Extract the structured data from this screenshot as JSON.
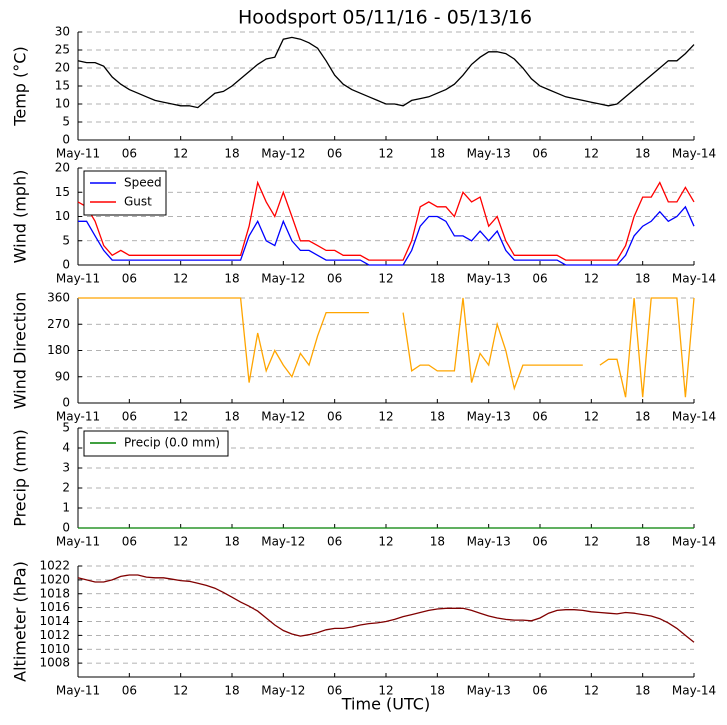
{
  "chart_data": [
    {
      "type": "line",
      "title": "Hoodsport 05/11/16 - 05/13/16",
      "ylabel": "Temp (°C)",
      "x": [
        0,
        1,
        2,
        3,
        4,
        5,
        6,
        7,
        8,
        9,
        10,
        11,
        12,
        13,
        14,
        15,
        16,
        17,
        18,
        19,
        20,
        21,
        22,
        23,
        24,
        25,
        26,
        27,
        28,
        29,
        30,
        31,
        32,
        33,
        34,
        35,
        36,
        37,
        38,
        39,
        40,
        41,
        42,
        43,
        44,
        45,
        46,
        47,
        48,
        49,
        50,
        51,
        52,
        53,
        54,
        55,
        56,
        57,
        58,
        59,
        60,
        61,
        62,
        63,
        64,
        65,
        66,
        67,
        68,
        69,
        70,
        71,
        72
      ],
      "series": [
        {
          "name": "Temp",
          "color": "#000000",
          "values": [
            22,
            21.5,
            21.5,
            20.5,
            17.5,
            15.5,
            14,
            13,
            12,
            11,
            10.5,
            10,
            9.5,
            9.5,
            9,
            11,
            13,
            13.5,
            15,
            17,
            19,
            21,
            22.5,
            23,
            28,
            28.5,
            28,
            27,
            25.5,
            22,
            18,
            15.5,
            14,
            13,
            12,
            11,
            10,
            10,
            9.5,
            11,
            11.5,
            12,
            13,
            14,
            15.5,
            18,
            21,
            23,
            24.5,
            24.5,
            24,
            22.5,
            20,
            17,
            15,
            14,
            13,
            12,
            11.5,
            11,
            10.5,
            10,
            9.5,
            10,
            12,
            14,
            16,
            18,
            20,
            22,
            22,
            24,
            26.5
          ]
        }
      ],
      "xlim": [
        0,
        72
      ],
      "ylim": [
        0,
        30
      ],
      "yticks": [
        0,
        5,
        10,
        15,
        20,
        25,
        30
      ],
      "grid": true,
      "xticks": [
        {
          "value": 0,
          "label": "May-11"
        },
        {
          "value": 6,
          "label": "06"
        },
        {
          "value": 12,
          "label": "12"
        },
        {
          "value": 18,
          "label": "18"
        },
        {
          "value": 24,
          "label": "May-12"
        },
        {
          "value": 30,
          "label": "06"
        },
        {
          "value": 36,
          "label": "12"
        },
        {
          "value": 42,
          "label": "18"
        },
        {
          "value": 48,
          "label": "May-13"
        },
        {
          "value": 54,
          "label": "06"
        },
        {
          "value": 60,
          "label": "12"
        },
        {
          "value": 66,
          "label": "18"
        },
        {
          "value": 72,
          "label": "May-14"
        }
      ]
    },
    {
      "type": "line",
      "ylabel": "Wind (mph)",
      "legend": "upper left",
      "x": [
        0,
        1,
        2,
        3,
        4,
        5,
        6,
        7,
        8,
        9,
        10,
        11,
        12,
        13,
        14,
        15,
        16,
        17,
        18,
        19,
        20,
        21,
        22,
        23,
        24,
        25,
        26,
        27,
        28,
        29,
        30,
        31,
        32,
        33,
        34,
        35,
        36,
        37,
        38,
        39,
        40,
        41,
        42,
        43,
        44,
        45,
        46,
        47,
        48,
        49,
        50,
        51,
        52,
        53,
        54,
        55,
        56,
        57,
        58,
        59,
        60,
        61,
        62,
        63,
        64,
        65,
        66,
        67,
        68,
        69,
        70,
        71,
        72
      ],
      "series": [
        {
          "name": "Speed",
          "color": "#0000ff",
          "values": [
            9,
            9,
            6,
            3,
            1,
            1,
            1,
            1,
            1,
            1,
            1,
            1,
            1,
            1,
            1,
            1,
            1,
            1,
            1,
            1,
            6,
            9,
            5,
            4,
            9,
            5,
            3,
            3,
            2,
            1,
            1,
            1,
            1,
            1,
            0,
            0,
            0,
            0,
            0,
            3,
            8,
            10,
            10,
            9,
            6,
            6,
            5,
            7,
            5,
            7,
            3,
            1,
            1,
            1,
            1,
            1,
            1,
            0,
            0,
            0,
            0,
            0,
            0,
            0,
            2,
            6,
            8,
            9,
            11,
            9,
            10,
            12,
            8
          ]
        },
        {
          "name": "Gust",
          "color": "#ff0000",
          "values": [
            13,
            12,
            9,
            4,
            2,
            3,
            2,
            2,
            2,
            2,
            2,
            2,
            2,
            2,
            2,
            2,
            2,
            2,
            2,
            2,
            8,
            17,
            13,
            10,
            15,
            10,
            5,
            5,
            4,
            3,
            3,
            2,
            2,
            2,
            1,
            1,
            1,
            1,
            1,
            5,
            12,
            13,
            12,
            12,
            10,
            15,
            13,
            14,
            8,
            10,
            5,
            2,
            2,
            2,
            2,
            2,
            2,
            1,
            1,
            1,
            1,
            1,
            1,
            1,
            4,
            10,
            14,
            14,
            17,
            13,
            13,
            16,
            13
          ]
        }
      ],
      "xlim": [
        0,
        72
      ],
      "ylim": [
        0,
        20
      ],
      "yticks": [
        0,
        5,
        10,
        15,
        20
      ],
      "grid": true,
      "xticks": [
        {
          "value": 0,
          "label": "May-11"
        },
        {
          "value": 6,
          "label": "06"
        },
        {
          "value": 12,
          "label": "12"
        },
        {
          "value": 18,
          "label": "18"
        },
        {
          "value": 24,
          "label": "May-12"
        },
        {
          "value": 30,
          "label": "06"
        },
        {
          "value": 36,
          "label": "12"
        },
        {
          "value": 42,
          "label": "18"
        },
        {
          "value": 48,
          "label": "May-13"
        },
        {
          "value": 54,
          "label": "06"
        },
        {
          "value": 60,
          "label": "12"
        },
        {
          "value": 66,
          "label": "18"
        },
        {
          "value": 72,
          "label": "May-14"
        }
      ]
    },
    {
      "type": "line",
      "ylabel": "Wind Direction",
      "x": [
        0,
        1,
        2,
        3,
        4,
        5,
        6,
        7,
        8,
        9,
        10,
        11,
        12,
        13,
        14,
        15,
        16,
        17,
        18,
        19,
        20,
        21,
        22,
        23,
        24,
        25,
        26,
        27,
        28,
        29,
        30,
        31,
        32,
        33,
        34,
        35,
        36,
        37,
        38,
        39,
        40,
        41,
        42,
        43,
        44,
        45,
        46,
        47,
        48,
        49,
        50,
        51,
        52,
        53,
        54,
        55,
        56,
        57,
        58,
        59,
        60,
        61,
        62,
        63,
        64,
        65,
        66,
        67,
        68,
        69,
        70,
        71,
        72
      ],
      "series": [
        {
          "name": "Direction",
          "color": "#ffa500",
          "values": [
            360,
            360,
            360,
            360,
            360,
            360,
            360,
            360,
            360,
            360,
            360,
            360,
            360,
            360,
            360,
            360,
            360,
            360,
            360,
            360,
            70,
            240,
            110,
            180,
            130,
            90,
            170,
            130,
            230,
            310,
            310,
            310,
            310,
            310,
            310,
            null,
            null,
            null,
            310,
            110,
            130,
            130,
            110,
            110,
            110,
            360,
            70,
            170,
            130,
            270,
            180,
            50,
            130,
            130,
            130,
            130,
            130,
            130,
            130,
            130,
            null,
            130,
            150,
            150,
            20,
            360,
            20,
            360,
            360,
            360,
            360,
            20,
            360
          ]
        }
      ],
      "xlim": [
        0,
        72
      ],
      "ylim": [
        0,
        360
      ],
      "yticks": [
        0,
        90,
        180,
        270,
        360
      ],
      "grid": true,
      "xticks": [
        {
          "value": 0,
          "label": "May-11"
        },
        {
          "value": 6,
          "label": "06"
        },
        {
          "value": 12,
          "label": "12"
        },
        {
          "value": 18,
          "label": "18"
        },
        {
          "value": 24,
          "label": "May-12"
        },
        {
          "value": 30,
          "label": "06"
        },
        {
          "value": 36,
          "label": "12"
        },
        {
          "value": 42,
          "label": "18"
        },
        {
          "value": 48,
          "label": "May-13"
        },
        {
          "value": 54,
          "label": "06"
        },
        {
          "value": 60,
          "label": "12"
        },
        {
          "value": 66,
          "label": "18"
        },
        {
          "value": 72,
          "label": "May-14"
        }
      ]
    },
    {
      "type": "line",
      "ylabel": "Precip (mm)",
      "legend": "upper left",
      "x": [
        0,
        1,
        2,
        3,
        4,
        5,
        6,
        7,
        8,
        9,
        10,
        11,
        12,
        13,
        14,
        15,
        16,
        17,
        18,
        19,
        20,
        21,
        22,
        23,
        24,
        25,
        26,
        27,
        28,
        29,
        30,
        31,
        32,
        33,
        34,
        35,
        36,
        37,
        38,
        39,
        40,
        41,
        42,
        43,
        44,
        45,
        46,
        47,
        48,
        49,
        50,
        51,
        52,
        53,
        54,
        55,
        56,
        57,
        58,
        59,
        60,
        61,
        62,
        63,
        64,
        65,
        66,
        67,
        68,
        69,
        70,
        71,
        72
      ],
      "series": [
        {
          "name": "Precip (0.0 mm)",
          "color": "#008000",
          "values": [
            0,
            0,
            0,
            0,
            0,
            0,
            0,
            0,
            0,
            0,
            0,
            0,
            0,
            0,
            0,
            0,
            0,
            0,
            0,
            0,
            0,
            0,
            0,
            0,
            0,
            0,
            0,
            0,
            0,
            0,
            0,
            0,
            0,
            0,
            0,
            0,
            0,
            0,
            0,
            0,
            0,
            0,
            0,
            0,
            0,
            0,
            0,
            0,
            0,
            0,
            0,
            0,
            0,
            0,
            0,
            0,
            0,
            0,
            0,
            0,
            0,
            0,
            0,
            0,
            0,
            0,
            0,
            0,
            0,
            0,
            0,
            0,
            0
          ]
        }
      ],
      "xlim": [
        0,
        72
      ],
      "ylim": [
        0,
        5
      ],
      "yticks": [
        0,
        1,
        2,
        3,
        4,
        5
      ],
      "grid": true,
      "xticks": [
        {
          "value": 0,
          "label": "May-11"
        },
        {
          "value": 6,
          "label": "06"
        },
        {
          "value": 12,
          "label": "12"
        },
        {
          "value": 18,
          "label": "18"
        },
        {
          "value": 24,
          "label": "May-12"
        },
        {
          "value": 30,
          "label": "06"
        },
        {
          "value": 36,
          "label": "12"
        },
        {
          "value": 42,
          "label": "18"
        },
        {
          "value": 48,
          "label": "May-13"
        },
        {
          "value": 54,
          "label": "06"
        },
        {
          "value": 60,
          "label": "12"
        },
        {
          "value": 66,
          "label": "18"
        },
        {
          "value": 72,
          "label": "May-14"
        }
      ]
    },
    {
      "type": "line",
      "ylabel": "Altimeter (hPa)",
      "xlabel": "Time (UTC)",
      "x": [
        0,
        1,
        2,
        3,
        4,
        5,
        6,
        7,
        8,
        9,
        10,
        11,
        12,
        13,
        14,
        15,
        16,
        17,
        18,
        19,
        20,
        21,
        22,
        23,
        24,
        25,
        26,
        27,
        28,
        29,
        30,
        31,
        32,
        33,
        34,
        35,
        36,
        37,
        38,
        39,
        40,
        41,
        42,
        43,
        44,
        45,
        46,
        47,
        48,
        49,
        50,
        51,
        52,
        53,
        54,
        55,
        56,
        57,
        58,
        59,
        60,
        61,
        62,
        63,
        64,
        65,
        66,
        67,
        68,
        69,
        70,
        71,
        72
      ],
      "series": [
        {
          "name": "Altimeter",
          "color": "#800000",
          "values": [
            1020.3,
            1020,
            1019.7,
            1019.7,
            1020,
            1020.5,
            1020.7,
            1020.7,
            1020.4,
            1020.3,
            1020.3,
            1020.1,
            1019.9,
            1019.8,
            1019.5,
            1019.2,
            1018.8,
            1018.2,
            1017.5,
            1016.8,
            1016.2,
            1015.5,
            1014.5,
            1013.5,
            1012.7,
            1012.2,
            1011.9,
            1012.1,
            1012.4,
            1012.8,
            1013,
            1013,
            1013.2,
            1013.5,
            1013.7,
            1013.8,
            1014,
            1014.3,
            1014.7,
            1015,
            1015.3,
            1015.6,
            1015.8,
            1015.9,
            1015.9,
            1015.9,
            1015.6,
            1015.2,
            1014.8,
            1014.5,
            1014.3,
            1014.2,
            1014.2,
            1014.1,
            1014.5,
            1015.2,
            1015.6,
            1015.7,
            1015.7,
            1015.6,
            1015.4,
            1015.3,
            1015.2,
            1015.1,
            1015.3,
            1015.2,
            1015,
            1014.8,
            1014.4,
            1013.8,
            1013,
            1012,
            1011
          ]
        }
      ],
      "xlim": [
        0,
        72
      ],
      "ylim": [
        1006,
        1022
      ],
      "yticks": [
        1008,
        1010,
        1012,
        1014,
        1016,
        1018,
        1020,
        1022
      ],
      "grid": true,
      "xticks": [
        {
          "value": 0,
          "label": "May-11"
        },
        {
          "value": 6,
          "label": "06"
        },
        {
          "value": 12,
          "label": "12"
        },
        {
          "value": 18,
          "label": "18"
        },
        {
          "value": 24,
          "label": "May-12"
        },
        {
          "value": 30,
          "label": "06"
        },
        {
          "value": 36,
          "label": "12"
        },
        {
          "value": 42,
          "label": "18"
        },
        {
          "value": 48,
          "label": "May-13"
        },
        {
          "value": 54,
          "label": "06"
        },
        {
          "value": 60,
          "label": "12"
        },
        {
          "value": 66,
          "label": "18"
        },
        {
          "value": 72,
          "label": "May-14"
        }
      ]
    }
  ]
}
